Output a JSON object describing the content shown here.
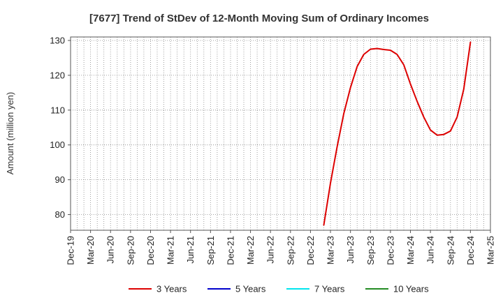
{
  "chart_data": {
    "type": "line",
    "title": "[7677]  Trend of StDev of 12-Month Moving Sum of Ordinary Incomes",
    "ylabel": "Amount (million yen)",
    "xlabel": "",
    "ylim": [
      75.5,
      131
    ],
    "yticks": [
      80,
      90,
      100,
      110,
      120,
      130
    ],
    "x_ticks": [
      "Dec-19",
      "Mar-20",
      "Jun-20",
      "Sep-20",
      "Dec-20",
      "Mar-21",
      "Jun-21",
      "Sep-21",
      "Dec-21",
      "Mar-22",
      "Jun-22",
      "Sep-22",
      "Dec-22",
      "Mar-23",
      "Jun-23",
      "Sep-23",
      "Dec-23",
      "Mar-24",
      "Jun-24",
      "Sep-24",
      "Dec-24",
      "Mar-25"
    ],
    "x_start": "2019-12",
    "x_end": "2025-03",
    "grid": true,
    "legend_position": "bottom",
    "series": [
      {
        "name": "3 Years",
        "color": "#dd0000",
        "points": [
          [
            "2023-02",
            77.0
          ],
          [
            "2023-03",
            89.0
          ],
          [
            "2023-04",
            99.5
          ],
          [
            "2023-05",
            109.0
          ],
          [
            "2023-06",
            116.5
          ],
          [
            "2023-07",
            122.5
          ],
          [
            "2023-08",
            126.0
          ],
          [
            "2023-09",
            127.5
          ],
          [
            "2023-10",
            127.7
          ],
          [
            "2023-11",
            127.4
          ],
          [
            "2023-12",
            127.2
          ],
          [
            "2024-01",
            126.0
          ],
          [
            "2024-02",
            123.0
          ],
          [
            "2024-03",
            117.5
          ],
          [
            "2024-04",
            112.5
          ],
          [
            "2024-05",
            108.0
          ],
          [
            "2024-06",
            104.3
          ],
          [
            "2024-07",
            102.8
          ],
          [
            "2024-08",
            103.0
          ],
          [
            "2024-09",
            104.0
          ],
          [
            "2024-10",
            108.0
          ],
          [
            "2024-11",
            116.0
          ],
          [
            "2024-12",
            129.5
          ]
        ]
      },
      {
        "name": "5 Years",
        "color": "#0000cc",
        "points": []
      },
      {
        "name": "7 Years",
        "color": "#00e5ee",
        "points": []
      },
      {
        "name": "10 Years",
        "color": "#228b22",
        "points": []
      }
    ]
  }
}
